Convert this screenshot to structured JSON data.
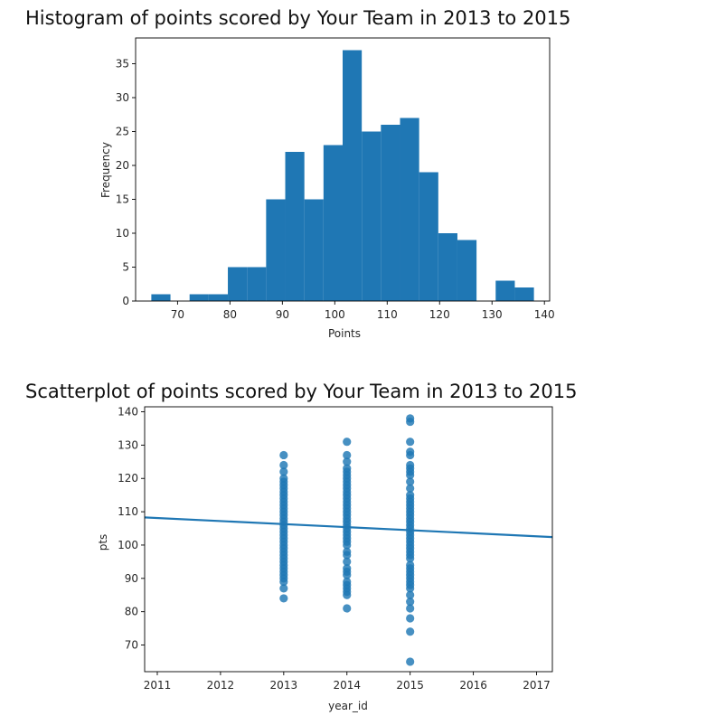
{
  "chart_data": [
    {
      "type": "bar",
      "title": "Histogram of points scored by Your Team in 2013 to 2015",
      "xlabel": "Points",
      "ylabel": "Frequency",
      "xlim": [
        62,
        141
      ],
      "ylim": [
        0,
        38.8
      ],
      "xticks": [
        70,
        80,
        90,
        100,
        110,
        120,
        130,
        140
      ],
      "yticks": [
        0,
        5,
        10,
        15,
        20,
        25,
        30,
        35
      ],
      "bin_edges": [
        65,
        68.65,
        72.3,
        75.95,
        79.6,
        83.25,
        86.9,
        90.55,
        94.2,
        97.85,
        101.5,
        105.15,
        108.8,
        112.45,
        116.1,
        119.75,
        123.4,
        127.05,
        130.7,
        134.35,
        138
      ],
      "values": [
        1,
        0,
        1,
        1,
        5,
        5,
        15,
        22,
        15,
        23,
        37,
        25,
        26,
        27,
        19,
        10,
        9,
        0,
        3,
        2
      ],
      "color": "#1f77b4"
    },
    {
      "type": "scatter",
      "title": "Scatterplot of points scored by Your Team in 2013 to 2015",
      "xlabel": "year_id",
      "ylabel": "pts",
      "xlim": [
        2010.8,
        2017.25
      ],
      "ylim": [
        62,
        141.5
      ],
      "xticks": [
        2011,
        2012,
        2013,
        2014,
        2015,
        2016,
        2017
      ],
      "yticks": [
        70,
        80,
        90,
        100,
        110,
        120,
        130,
        140
      ],
      "series": [
        {
          "x": 2013,
          "y": [
            84,
            87,
            89,
            90,
            91,
            92,
            93,
            94,
            95,
            96,
            97,
            98,
            99,
            100,
            101,
            102,
            103,
            104,
            105,
            106,
            107,
            108,
            109,
            110,
            111,
            112,
            113,
            114,
            115,
            116,
            117,
            118,
            119,
            120,
            122,
            124,
            127
          ]
        },
        {
          "x": 2014,
          "y": [
            81,
            85,
            86,
            87,
            88,
            89,
            91,
            92,
            93,
            95,
            97,
            98,
            100,
            101,
            102,
            103,
            104,
            105,
            106,
            107,
            108,
            109,
            110,
            111,
            112,
            113,
            114,
            115,
            116,
            117,
            118,
            119,
            120,
            121,
            122,
            123,
            125,
            127,
            131
          ]
        },
        {
          "x": 2015,
          "y": [
            65,
            74,
            78,
            81,
            83,
            85,
            87,
            88,
            89,
            90,
            91,
            92,
            93,
            94,
            96,
            97,
            98,
            99,
            100,
            101,
            102,
            103,
            104,
            105,
            106,
            107,
            108,
            109,
            110,
            111,
            112,
            113,
            114,
            115,
            117,
            119,
            121,
            122,
            123,
            124,
            127,
            128,
            131,
            137,
            138
          ]
        }
      ],
      "regression": {
        "x": [
          2010.8,
          2017.25
        ],
        "y": [
          108.3,
          102.4
        ]
      },
      "color": "#1f77b4"
    }
  ]
}
